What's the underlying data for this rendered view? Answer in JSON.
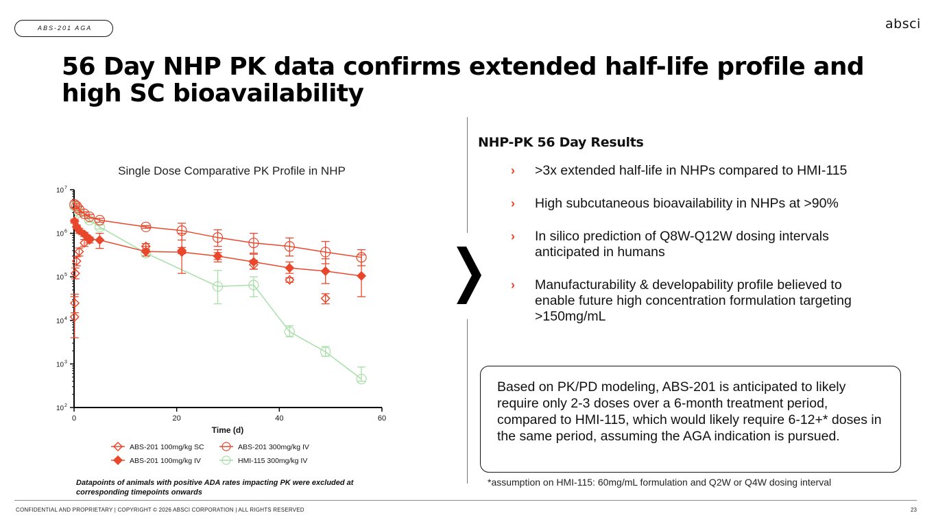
{
  "header": {
    "tag": "ABS-201 AGA",
    "logo": "absci",
    "title": "56 Day NHP PK data confirms extended half-life profile and high SC bioavailability"
  },
  "results": {
    "title": "NHP-PK 56 Day Results",
    "items": [
      ">3x extended half-life in NHPs compared to HMI-115",
      "High subcutaneous bioavailability in NHPs at >90%",
      "In silico prediction of Q8W-Q12W dosing intervals anticipated in humans",
      "Manufacturability & developability profile believed to enable future high concentration formulation targeting >150mg/mL"
    ]
  },
  "callout": "Based on PK/PD modeling, ABS-201 is anticipated to likely require only 2-3 doses over a 6-month treatment period, compared to HMI-115, which would likely require 6-12+* doses in the same period, assuming the AGA indication is pursued.",
  "footnote": "*assumption on HMI-115: 60mg/mL formulation and Q2W or Q4W dosing interval",
  "chart_note": "Datapoints of animals with positive ADA rates impacting PK were excluded at corresponding timepoints onwards",
  "footer": {
    "text": "CONFIDENTIAL AND PROPRIETARY | COPYRIGHT © 2026 ABSCI CORPORATION | ALL RIGHTS RESERVED",
    "page": "23"
  },
  "colors": {
    "abs_red": "#e8472c",
    "hmi_green": "#a6dfa6",
    "accent_chevron": "#e8472c"
  },
  "chart_data": {
    "type": "line",
    "title": "Single Dose Comparative PK Profile in NHP",
    "xlabel": "Time (d)",
    "ylabel": "",
    "xlim": [
      0,
      60
    ],
    "ylim_log10": [
      2,
      7
    ],
    "x_ticks": [
      0,
      20,
      40,
      60
    ],
    "y_ticks": [
      {
        "exp": 7,
        "base": "10",
        "sup": "7"
      },
      {
        "exp": 6,
        "base": "10",
        "sup": "6"
      },
      {
        "exp": 5,
        "base": "10",
        "sup": "5"
      },
      {
        "exp": 4,
        "base": "10",
        "sup": "4"
      },
      {
        "exp": 3,
        "base": "10",
        "sup": "3"
      },
      {
        "exp": 2,
        "base": "10",
        "sup": "2"
      }
    ],
    "series": [
      {
        "name": "ABS-201 100mg/kg SC",
        "marker": "diamond-open",
        "color": "#e8472c",
        "line": false,
        "points": [
          {
            "x": 0.1,
            "y": 12000,
            "lo": 4000,
            "hi": 35000
          },
          {
            "x": 0.15,
            "y": 25000,
            "lo": 15000,
            "hi": 40000
          },
          {
            "x": 0.25,
            "y": 120000,
            "lo": 90000,
            "hi": 160000
          },
          {
            "x": 0.5,
            "y": 230000,
            "lo": 180000,
            "hi": 290000
          },
          {
            "x": 1,
            "y": 380000,
            "lo": 300000,
            "hi": 460000
          },
          {
            "x": 2,
            "y": 600000,
            "lo": 500000,
            "hi": 720000
          },
          {
            "x": 3,
            "y": 700000,
            "lo": 600000,
            "hi": 800000
          },
          {
            "x": 14,
            "y": 500000,
            "lo": 430000,
            "hi": 580000
          },
          {
            "x": 21,
            "y": 400000,
            "lo": 340000,
            "hi": 470000
          },
          {
            "x": 28,
            "y": 300000,
            "lo": 250000,
            "hi": 360000
          },
          {
            "x": 35,
            "y": 190000,
            "lo": 150000,
            "hi": 240000
          },
          {
            "x": 42,
            "y": 85000,
            "lo": 75000,
            "hi": 95000
          },
          {
            "x": 49,
            "y": 32000,
            "lo": 24000,
            "hi": 41000
          }
        ]
      },
      {
        "name": "ABS-201 100mg/kg IV",
        "marker": "diamond-filled",
        "color": "#e8472c",
        "line": true,
        "points": [
          {
            "x": 0.1,
            "y": 1900000,
            "lo": 1700000,
            "hi": 2100000
          },
          {
            "x": 0.5,
            "y": 1400000,
            "lo": 1250000,
            "hi": 1550000
          },
          {
            "x": 1,
            "y": 1150000,
            "lo": 1000000,
            "hi": 1300000
          },
          {
            "x": 2,
            "y": 950000,
            "lo": 850000,
            "hi": 1050000
          },
          {
            "x": 3,
            "y": 750000,
            "lo": 680000,
            "hi": 820000
          },
          {
            "x": 5,
            "y": 700000,
            "lo": 450000,
            "hi": 1000000
          },
          {
            "x": 14,
            "y": 380000,
            "lo": 300000,
            "hi": 500000
          },
          {
            "x": 21,
            "y": 370000,
            "lo": 120000,
            "hi": 1000000
          },
          {
            "x": 28,
            "y": 300000,
            "lo": 220000,
            "hi": 420000
          },
          {
            "x": 35,
            "y": 220000,
            "lo": 150000,
            "hi": 330000
          },
          {
            "x": 42,
            "y": 160000,
            "lo": 120000,
            "hi": 220000
          },
          {
            "x": 49,
            "y": 135000,
            "lo": 70000,
            "hi": 260000
          },
          {
            "x": 56,
            "y": 105000,
            "lo": 35000,
            "hi": 320000
          }
        ]
      },
      {
        "name": "ABS-201 300mg/kg IV",
        "marker": "circle-open",
        "color": "#e8472c",
        "line": true,
        "points": [
          {
            "x": 0.1,
            "y": 4600000,
            "lo": 3800000,
            "hi": 5500000
          },
          {
            "x": 0.5,
            "y": 4200000,
            "lo": 3600000,
            "hi": 4900000
          },
          {
            "x": 1,
            "y": 3500000,
            "lo": 3000000,
            "hi": 4100000
          },
          {
            "x": 2,
            "y": 2800000,
            "lo": 2500000,
            "hi": 3100000
          },
          {
            "x": 3,
            "y": 2400000,
            "lo": 2200000,
            "hi": 2700000
          },
          {
            "x": 5,
            "y": 2000000,
            "lo": 1800000,
            "hi": 2200000
          },
          {
            "x": 14,
            "y": 1400000,
            "lo": 1300000,
            "hi": 1500000
          },
          {
            "x": 21,
            "y": 1150000,
            "lo": 700000,
            "hi": 1700000
          },
          {
            "x": 28,
            "y": 800000,
            "lo": 500000,
            "hi": 1200000
          },
          {
            "x": 35,
            "y": 600000,
            "lo": 350000,
            "hi": 1000000
          },
          {
            "x": 42,
            "y": 500000,
            "lo": 300000,
            "hi": 780000
          },
          {
            "x": 49,
            "y": 370000,
            "lo": 200000,
            "hi": 650000
          },
          {
            "x": 56,
            "y": 280000,
            "lo": 180000,
            "hi": 420000
          }
        ]
      },
      {
        "name": "HMI-115 300mg/kg IV",
        "marker": "circle-open",
        "color": "#a6dfa6",
        "line": true,
        "points": [
          {
            "x": 0.1,
            "y": 4200000,
            "lo": 3500000,
            "hi": 5000000
          },
          {
            "x": 1,
            "y": 3000000,
            "lo": 2600000,
            "hi": 3400000
          },
          {
            "x": 3,
            "y": 2000000,
            "lo": 1800000,
            "hi": 2200000
          },
          {
            "x": 5,
            "y": 1400000,
            "lo": 1250000,
            "hi": 1550000
          },
          {
            "x": 14,
            "y": 350000,
            "lo": 300000,
            "hi": 400000
          },
          {
            "x": 28,
            "y": 60000,
            "lo": 24000,
            "hi": 140000
          },
          {
            "x": 35,
            "y": 65000,
            "lo": 35000,
            "hi": 100000
          },
          {
            "x": 42,
            "y": 5500,
            "lo": 4200,
            "hi": 7500
          },
          {
            "x": 49,
            "y": 1900,
            "lo": 1500,
            "hi": 2500
          },
          {
            "x": 56,
            "y": 450,
            "lo": 400,
            "hi": 850
          }
        ]
      }
    ],
    "legend": [
      {
        "label": "ABS-201 100mg/kg SC",
        "marker": "diamond-open",
        "color": "#e8472c"
      },
      {
        "label": "ABS-201 300mg/kg IV",
        "marker": "circle-open",
        "color": "#e8472c"
      },
      {
        "label": "ABS-201 100mg/kg IV",
        "marker": "diamond-filled",
        "color": "#e8472c"
      },
      {
        "label": "HMI-115 300mg/kg IV",
        "marker": "circle-open",
        "color": "#a6dfa6"
      }
    ],
    "legend_position": "bottom"
  }
}
